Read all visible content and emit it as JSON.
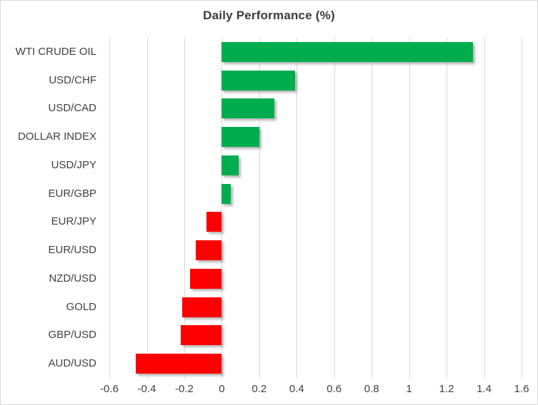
{
  "chart_data": {
    "type": "bar",
    "orientation": "horizontal",
    "title": "Daily Performance (%)",
    "categories": [
      "WTI CRUDE OIL",
      "USD/CHF",
      "USD/CAD",
      "DOLLAR INDEX",
      "USD/JPY",
      "EUR/GBP",
      "EUR/JPY",
      "EUR/USD",
      "NZD/USD",
      "GOLD",
      "GBP/USD",
      "AUD/USD"
    ],
    "values": [
      1.34,
      0.39,
      0.28,
      0.2,
      0.09,
      0.05,
      -0.08,
      -0.14,
      -0.17,
      -0.21,
      -0.22,
      -0.46
    ],
    "xlabel": "",
    "ylabel": "",
    "xlim": [
      -0.6,
      1.6
    ],
    "xtick_values": [
      -0.6,
      -0.4,
      -0.2,
      0,
      0.2,
      0.4,
      0.6,
      0.8,
      1,
      1.2,
      1.4,
      1.6
    ],
    "xtick_labels": [
      "-0.6",
      "-0.4",
      "-0.2",
      "0",
      "0.2",
      "0.4",
      "0.6",
      "0.8",
      "1",
      "1.2",
      "1.4",
      "1.6"
    ],
    "grid": true,
    "legend": false,
    "colors": {
      "positive_bar": "#00ad4e",
      "negative_bar": "#ff0000",
      "gridline": "#d9d9d9",
      "axis_text": "#404040",
      "title_text": "#3b3b3b",
      "chart_border": "#d9d9d9",
      "background": "#ffffff"
    }
  }
}
